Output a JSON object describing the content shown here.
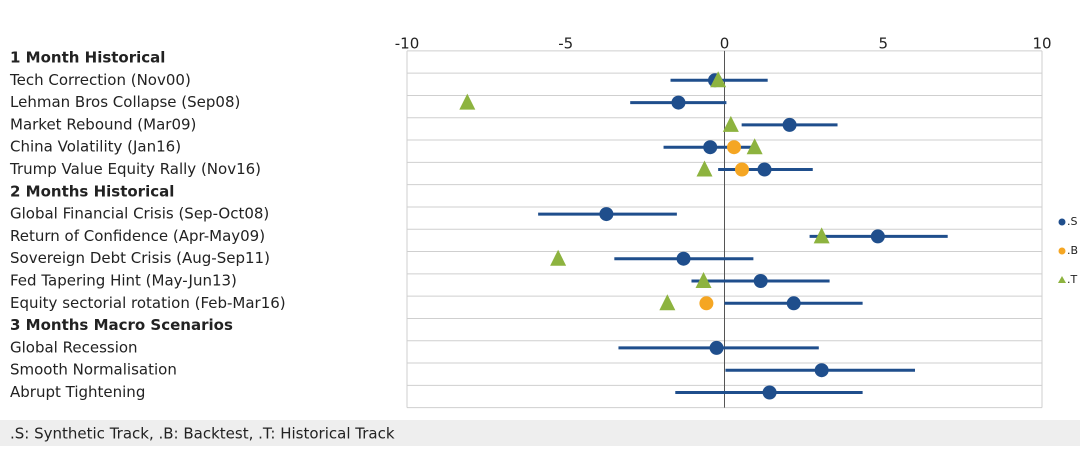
{
  "chart_data": {
    "type": "dot-range",
    "categories": [
      "1 Month Historical",
      "Tech Correction (Nov00)",
      "Lehman Bros Collapse (Sep08)",
      "Market Rebound (Mar09)",
      "China Volatility (Jan16)",
      "Trump Value Equity Rally (Nov16)",
      "2 Months Historical",
      "Global Financial Crisis (Sep-Oct08)",
      "Return of Confidence (Apr-May09)",
      "Sovereign Debt Crisis (Aug-Sep11)",
      "Fed Tapering Hint (May-Jun13)",
      "Equity sectorial rotation (Feb-Mar16)",
      "3 Months Macro Scenarios",
      "Global Recession",
      "Smooth Normalisation",
      "Abrupt Tightening"
    ],
    "xlim": [
      -10,
      10
    ],
    "xticks": [
      -10,
      -5,
      0,
      5,
      10
    ],
    "series": [
      {
        "name": ".S",
        "color": "#1f4e8c",
        "marker": "circle",
        "values": [
          null,
          -0.3,
          -1.45,
          2.05,
          -0.45,
          1.26,
          null,
          -3.72,
          4.83,
          -1.29,
          1.14,
          2.18,
          null,
          -0.25,
          3.06,
          1.42
        ],
        "low": [
          null,
          -1.7,
          -2.97,
          0.54,
          -1.92,
          -0.2,
          null,
          -5.87,
          2.68,
          -3.47,
          -1.04,
          0,
          null,
          -3.34,
          0.03,
          -1.55
        ],
        "high": [
          null,
          1.36,
          0.06,
          3.56,
          1.0,
          2.78,
          null,
          -1.5,
          7.03,
          0.91,
          3.31,
          4.35,
          null,
          2.97,
          6.0,
          4.35
        ]
      },
      {
        "name": ".B",
        "color": "#f5a623",
        "marker": "circle",
        "values": [
          null,
          null,
          null,
          null,
          0.3,
          0.55,
          null,
          null,
          null,
          null,
          null,
          -0.57,
          null,
          null,
          null,
          null
        ]
      },
      {
        "name": ".T",
        "color": "#8db33f",
        "marker": "triangle",
        "values": [
          null,
          -0.2,
          -8.1,
          0.2,
          0.95,
          -0.63,
          null,
          null,
          3.06,
          -5.24,
          -0.66,
          -1.8,
          null,
          null,
          null,
          null
        ]
      }
    ],
    "note": ".S: Synthetic Track, .B: Backtest, .T: Historical Track"
  }
}
